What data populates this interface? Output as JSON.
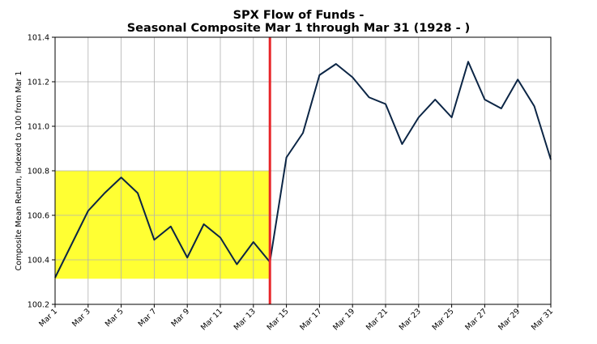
{
  "chart_data": {
    "type": "line",
    "title_line1": "SPX Flow of Funds -",
    "title_line2": "Seasonal Composite Mar 1 through Mar 31 (1928 - )",
    "xlabel": "",
    "ylabel": "Composite Mean Return, Indexed to 100 from Mar 1",
    "x_tick_labels": [
      "Mar 1",
      "Mar 3",
      "Mar 5",
      "Mar 7",
      "Mar 9",
      "Mar 11",
      "Mar 13",
      "Mar 15",
      "Mar 17",
      "Mar 19",
      "Mar 21",
      "Mar 23",
      "Mar 25",
      "Mar 27",
      "Mar 29",
      "Mar 31"
    ],
    "y_tick_labels": [
      "100.2",
      "100.4",
      "100.6",
      "100.8",
      "101.0",
      "101.2",
      "101.4"
    ],
    "ylim": [
      100.2,
      101.4
    ],
    "grid": true,
    "x": [
      "Mar 1",
      "Mar 2",
      "Mar 3",
      "Mar 4",
      "Mar 5",
      "Mar 6",
      "Mar 7",
      "Mar 8",
      "Mar 9",
      "Mar 10",
      "Mar 11",
      "Mar 12",
      "Mar 13",
      "Mar 14",
      "Mar 15",
      "Mar 16",
      "Mar 17",
      "Mar 18",
      "Mar 19",
      "Mar 20",
      "Mar 21",
      "Mar 22",
      "Mar 23",
      "Mar 24",
      "Mar 25",
      "Mar 26",
      "Mar 27",
      "Mar 28",
      "Mar 29",
      "Mar 30",
      "Mar 31"
    ],
    "series": [
      {
        "values": [
          100.32,
          100.47,
          100.62,
          100.7,
          100.77,
          100.7,
          100.49,
          100.55,
          100.41,
          100.56,
          100.5,
          100.38,
          100.48,
          100.39,
          100.86,
          100.97,
          101.23,
          101.28,
          101.22,
          101.13,
          101.1,
          100.92,
          101.04,
          101.12,
          101.04,
          101.29,
          101.12,
          101.08,
          101.21,
          101.09,
          100.85
        ],
        "color": "#0b2545"
      }
    ],
    "highlight_region": {
      "x_start": "Mar 1",
      "x_end": "Mar 14",
      "y_start": 100.315,
      "y_end": 100.8,
      "color": "#ffff33"
    },
    "marker_line": {
      "x": "Mar 14",
      "color": "#e8262a"
    }
  }
}
